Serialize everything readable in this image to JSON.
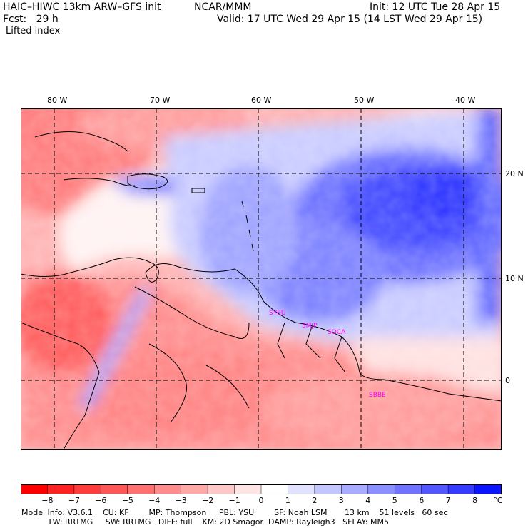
{
  "header": {
    "model_title": "HAIC–HIWC 13km ARW–GFS init",
    "org": "NCAR/MMM",
    "init": "Init: 12 UTC Tue 28 Apr 15",
    "fcst": "Fcst:   29 h",
    "valid": "Valid: 17 UTC Wed 29 Apr 15 (14 LST Wed 29 Apr 15)",
    "field": "Lifted index"
  },
  "axes": {
    "longitudes": [
      "80 W",
      "70 W",
      "60 W",
      "50 W",
      "40 W"
    ],
    "latitudes": [
      "20 N",
      "10 N",
      "0"
    ]
  },
  "stations": [
    "SYEU",
    "SMJP",
    "SOCA",
    "SBBE"
  ],
  "colorbar": {
    "ticks": [
      "−8",
      "−7",
      "−6",
      "−5",
      "−4",
      "−3",
      "−2",
      "−1",
      "0",
      "1",
      "2",
      "3",
      "4",
      "5",
      "6",
      "7",
      "8"
    ],
    "unit": "°C",
    "colors": [
      "#ff0000",
      "#ff2222",
      "#ff3d3d",
      "#ff5757",
      "#ff7070",
      "#ff8c8c",
      "#ffa8a8",
      "#ffc8c8",
      "#ffe4e4",
      "#ffffff",
      "#e0e2ff",
      "#c4c6ff",
      "#a8abff",
      "#8c8fff",
      "#6f73ff",
      "#5257ff",
      "#353bff",
      "#0a14ff"
    ]
  },
  "model_info": {
    "line1": "Model Info: V3.6.1    CU: KF        MP: Thompson     PBL: YSU        SF: Noah LSM       13 km    51 levels   60 sec",
    "line2": "           LW: RRTMG     SW: RRTMG   DIFF: full    KM: 2D Smagor  DAMP: Rayleigh3   SFLAY: MM5"
  }
}
